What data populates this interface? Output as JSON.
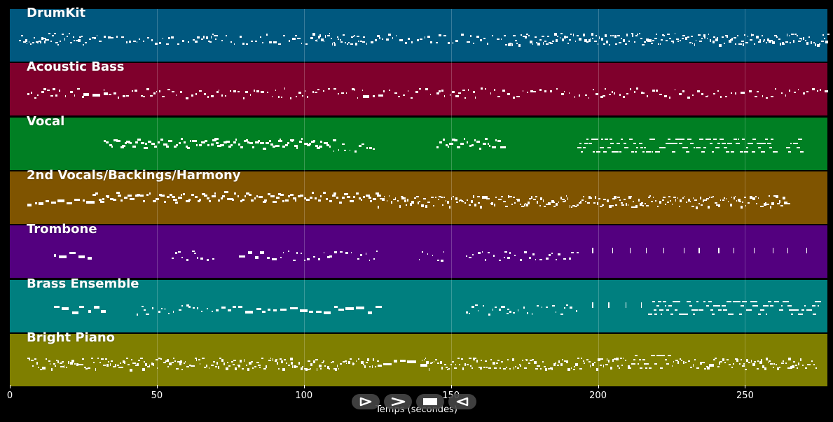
{
  "axis": {
    "xlabel": "Temps (secondes)",
    "xlim": [
      0,
      278
    ],
    "ticks": [
      {
        "value": 0,
        "label": "0"
      },
      {
        "value": 50,
        "label": "50"
      },
      {
        "value": 100,
        "label": "100"
      },
      {
        "value": 150,
        "label": "150"
      },
      {
        "value": 200,
        "label": "200"
      },
      {
        "value": 250,
        "label": "250"
      }
    ]
  },
  "tracks": [
    {
      "name": "DrumKit",
      "color": "#00587f",
      "regions": [
        [
          3,
          26,
          "dense"
        ],
        [
          27,
          65,
          "sparse"
        ],
        [
          65,
          70,
          "dense"
        ],
        [
          70,
          103,
          "sparse"
        ],
        [
          103,
          120,
          "dense"
        ],
        [
          120,
          167,
          "sparse"
        ],
        [
          167,
          278,
          "dense"
        ]
      ]
    },
    {
      "name": "Acoustic Bass",
      "color": "#7f002c",
      "regions": [
        [
          6,
          25,
          "sparse"
        ],
        [
          25,
          32,
          "block"
        ],
        [
          32,
          120,
          "sparse"
        ],
        [
          120,
          126,
          "block"
        ],
        [
          126,
          278,
          "sparse"
        ]
      ]
    },
    {
      "name": "Vocal",
      "color": "#007f23",
      "regions": [
        [
          32,
          70,
          "melody"
        ],
        [
          70,
          110,
          "melody"
        ],
        [
          110,
          124,
          "sparse"
        ],
        [
          145,
          168,
          "melody"
        ],
        [
          193,
          260,
          "chords"
        ],
        [
          264,
          269,
          "chords"
        ]
      ]
    },
    {
      "name": "2nd Vocals/Backings/Harmony",
      "color": "#7f5400",
      "regions": [
        [
          6,
          28,
          "block"
        ],
        [
          28,
          125,
          "melody"
        ],
        [
          125,
          167,
          "dense"
        ],
        [
          167,
          265,
          "dense"
        ]
      ]
    },
    {
      "name": "Trombone",
      "color": "#53007f",
      "regions": [
        [
          15,
          28,
          "block"
        ],
        [
          55,
          70,
          "sparse"
        ],
        [
          78,
          90,
          "block"
        ],
        [
          92,
          125,
          "sparse"
        ],
        [
          139,
          148,
          "sparse"
        ],
        [
          155,
          170,
          "sparse"
        ],
        [
          168,
          193,
          "sparse"
        ],
        [
          198,
          275,
          "ticks"
        ]
      ]
    },
    {
      "name": "Brass Ensemble",
      "color": "#007f7f",
      "regions": [
        [
          15,
          33,
          "block"
        ],
        [
          43,
          70,
          "sparse"
        ],
        [
          70,
          90,
          "block"
        ],
        [
          92,
          125,
          "block"
        ],
        [
          155,
          170,
          "sparse"
        ],
        [
          168,
          193,
          "sparse"
        ],
        [
          198,
          215,
          "ticks"
        ],
        [
          217,
          275,
          "chords"
        ]
      ]
    },
    {
      "name": "Bright Piano",
      "color": "#7f7f00",
      "regions": [
        [
          6,
          125,
          "dense"
        ],
        [
          125,
          140,
          "block"
        ],
        [
          140,
          210,
          "dense"
        ],
        [
          210,
          225,
          "chords"
        ],
        [
          225,
          274,
          "dense"
        ]
      ]
    }
  ],
  "transport": [
    {
      "name": "play-from-start-icon",
      "label": ""
    },
    {
      "name": "play-icon",
      "label": ""
    },
    {
      "name": "stop-icon",
      "label": ""
    },
    {
      "name": "rewind-icon",
      "label": ""
    }
  ]
}
